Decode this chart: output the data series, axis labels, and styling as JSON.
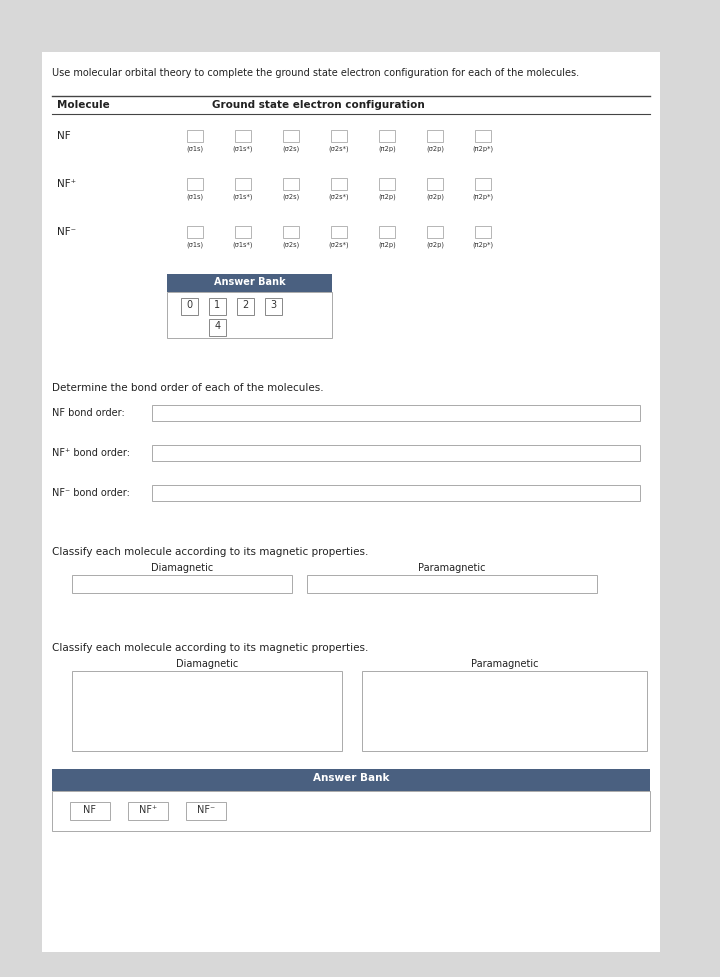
{
  "title_text": "Use molecular orbital theory to complete the ground state electron configuration for each of the molecules.",
  "table_header_molecule": "Molecule",
  "table_header_config": "Ground state electron configuration",
  "molecules": [
    "NF",
    "NF⁺",
    "NF⁻"
  ],
  "mo_labels": [
    "(σ1s)",
    "(σ1s*)",
    "(σ2s)",
    "(σ2s*)",
    "(π2p)",
    "(σ2p)",
    "(π2p*)"
  ],
  "answer_bank_title": "Answer Bank",
  "answer_bank_numbers": [
    "0",
    "1",
    "2",
    "3"
  ],
  "answer_bank_bottom": [
    "4"
  ],
  "bond_order_labels": [
    "NF bond order:",
    "NF⁺ bond order:",
    "NF⁻ bond order:"
  ],
  "classify_title1": "Classify each molecule according to its magnetic properties.",
  "diamagnetic": "Diamagnetic",
  "paramagnetic": "Paramagnetic",
  "classify_title2": "Classify each molecule according to its magnetic properties.",
  "answer_bank2_title": "Answer Bank",
  "answer_bank2_items": [
    "NF",
    "NF⁺",
    "NF⁻"
  ],
  "bg_color": "#ffffff",
  "answer_bank_header_color": "#4a6080",
  "page_bg": "#d8d8d8"
}
